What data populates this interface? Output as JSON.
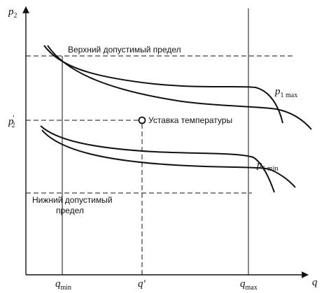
{
  "axes": {
    "y_symbol": "p",
    "y_subscript": "2",
    "x_symbol": "q"
  },
  "x_ticks": {
    "qmin": {
      "symbol": "q",
      "sub": "min"
    },
    "qprime": {
      "symbol": "q'"
    },
    "qmax": {
      "symbol": "q",
      "sub": "max"
    }
  },
  "y_tick": {
    "symbol": "p",
    "prime": "'",
    "sub": "2"
  },
  "labels": {
    "upper_limit": "Верхний допустимый предел",
    "lower_limit_line1": "Нижний допустимый",
    "lower_limit_line2": "предел",
    "setpoint": "Уставка температуры"
  },
  "curves": {
    "p1max": {
      "symbol": "p",
      "sub": "1 max"
    },
    "p1min": {
      "symbol": "p",
      "sub": "1 min"
    }
  }
}
